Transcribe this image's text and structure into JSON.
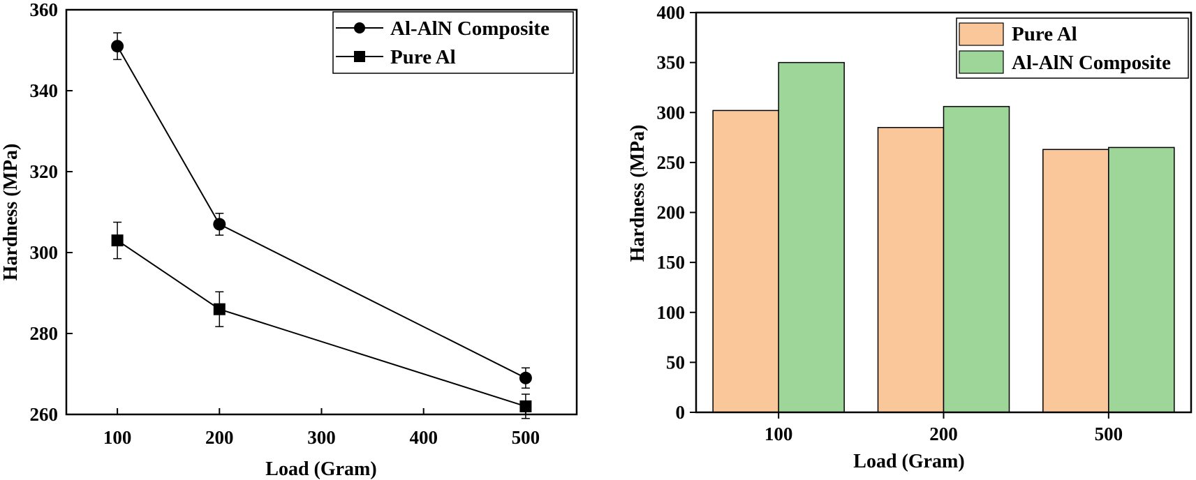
{
  "chart_data": [
    {
      "type": "line",
      "xlabel": "Load (Gram)",
      "ylabel": "Hardness (MPa)",
      "xlim": [
        50,
        550
      ],
      "ylim": [
        260,
        360
      ],
      "xticks": [
        100,
        200,
        300,
        400,
        500
      ],
      "yticks": [
        260,
        280,
        300,
        320,
        340,
        360
      ],
      "legend_position": "top-right",
      "series": [
        {
          "name": "Al-AlN Composite",
          "marker": "circle",
          "x": [
            100,
            200,
            500
          ],
          "y": [
            351,
            307,
            269
          ],
          "error": [
            3.3,
            2.7,
            2.5
          ]
        },
        {
          "name": "Pure Al",
          "marker": "square",
          "x": [
            100,
            200,
            500
          ],
          "y": [
            303,
            286,
            262
          ],
          "error": [
            4.5,
            4.3,
            3.0
          ]
        }
      ]
    },
    {
      "type": "bar",
      "xlabel": "Load (Gram)",
      "ylabel": "Hardness (MPa)",
      "categories": [
        "100",
        "200",
        "500"
      ],
      "ylim": [
        0,
        400
      ],
      "yticks": [
        0,
        50,
        100,
        150,
        200,
        250,
        300,
        350,
        400
      ],
      "legend_position": "top-right",
      "series": [
        {
          "name": "Pure Al",
          "color": "#f9c799",
          "values": [
            302,
            285,
            263
          ]
        },
        {
          "name": "Al-AlN Composite",
          "color": "#9ed69a",
          "values": [
            350,
            306,
            265
          ]
        }
      ]
    }
  ]
}
